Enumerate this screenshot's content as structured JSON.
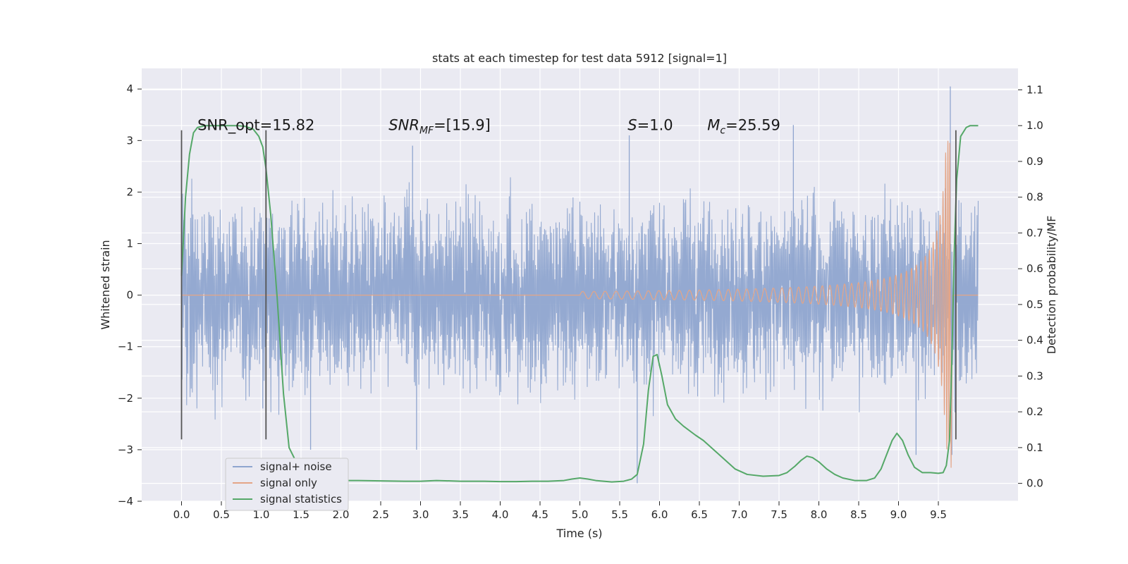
{
  "chart_data": {
    "type": "line",
    "title": "stats at each timestep for test data 5912 [signal=1]",
    "xlabel": "Time (s)",
    "ylabel": "Whitened strain",
    "y2label": "Detection probability/MF",
    "xlim": [
      -0.5,
      10.5
    ],
    "ylim": [
      -4.0,
      4.4
    ],
    "y2lim": [
      -0.05,
      1.16
    ],
    "x_ticks": [
      "0.0",
      "0.5",
      "1.0",
      "1.5",
      "2.0",
      "2.5",
      "3.0",
      "3.5",
      "4.0",
      "4.5",
      "5.0",
      "5.5",
      "6.0",
      "6.5",
      "7.0",
      "7.5",
      "8.0",
      "8.5",
      "9.0",
      "9.5"
    ],
    "y_ticks": [
      "4",
      "3",
      "2",
      "1",
      "0",
      "−1",
      "−2",
      "−3",
      "−4"
    ],
    "y2_ticks": [
      "1.1",
      "1.0",
      "0.9",
      "0.8",
      "0.7",
      "0.6",
      "0.5",
      "0.4",
      "0.3",
      "0.2",
      "0.1",
      "0.0"
    ],
    "grid": true,
    "legend_position": "lower-left",
    "annotations": [
      {
        "text": "SNR_opt=15.82",
        "x": 0.2,
        "y": 3.2
      },
      {
        "main": "SNR",
        "sub": "MF",
        "rest": "=[15.9]",
        "x": 2.6,
        "y": 3.2
      },
      {
        "main": "S",
        "sub": "",
        "rest": "=1.0",
        "x": 5.6,
        "y": 3.2
      },
      {
        "main": "M",
        "sub": "c",
        "rest": "=25.59",
        "x": 6.6,
        "y": 3.2
      }
    ],
    "vlines": [
      {
        "x": 0.0,
        "ymin": -2.8,
        "ymax": 3.2
      },
      {
        "x": 1.06,
        "ymin": -2.8,
        "ymax": 3.2
      },
      {
        "x": 9.72,
        "ymin": -2.8,
        "ymax": 3.2
      }
    ],
    "series": [
      {
        "name": "signal+ noise",
        "axis": "left",
        "color": "#8fa5cf",
        "description": "noisy whitened strain, roughly within ±1.5 with spikes to about ±3.5",
        "t_range": [
          0.0,
          10.0
        ],
        "envelope": [
          1.5,
          -1.5
        ],
        "peaks": [
          {
            "x": 1.02,
            "y": -2.2
          },
          {
            "x": 1.62,
            "y": -3.0
          },
          {
            "x": 2.9,
            "y": 2.9
          },
          {
            "x": 2.95,
            "y": -3.0
          },
          {
            "x": 5.72,
            "y": -3.65
          },
          {
            "x": 5.62,
            "y": 3.1
          },
          {
            "x": 7.68,
            "y": 3.3
          },
          {
            "x": 9.22,
            "y": -3.1
          },
          {
            "x": 9.65,
            "y": 4.05
          },
          {
            "x": 9.67,
            "y": -3.1
          }
        ]
      },
      {
        "name": "signal only",
        "axis": "left",
        "color": "#e4a587",
        "description": "chirp growing from zero near 5.0 s to a peak near 9.65 s",
        "chirp_start": 5.0,
        "chirp_peak": 9.65,
        "chirp_peak_amp": 3.0,
        "chirp_min": -3.35
      },
      {
        "name": "signal statistics",
        "axis": "right",
        "color": "#55a868",
        "x": [
          0.0,
          0.05,
          0.1,
          0.15,
          0.2,
          0.3,
          0.5,
          0.7,
          0.8,
          0.9,
          0.97,
          1.02,
          1.06,
          1.12,
          1.2,
          1.28,
          1.35,
          1.45,
          1.55,
          1.65,
          1.75,
          1.9,
          2.0,
          2.2,
          2.5,
          2.8,
          3.0,
          3.2,
          3.5,
          3.8,
          4.0,
          4.2,
          4.4,
          4.6,
          4.8,
          4.9,
          5.0,
          5.1,
          5.2,
          5.4,
          5.55,
          5.65,
          5.72,
          5.8,
          5.86,
          5.92,
          5.97,
          6.03,
          6.1,
          6.2,
          6.3,
          6.45,
          6.55,
          6.65,
          6.8,
          6.95,
          7.1,
          7.3,
          7.5,
          7.6,
          7.7,
          7.78,
          7.85,
          7.92,
          8.0,
          8.1,
          8.2,
          8.3,
          8.45,
          8.6,
          8.7,
          8.78,
          8.85,
          8.92,
          8.98,
          9.05,
          9.12,
          9.2,
          9.3,
          9.4,
          9.5,
          9.56,
          9.6,
          9.64,
          9.67,
          9.7,
          9.73,
          9.78,
          9.85,
          9.9,
          10.0
        ],
        "y": [
          0.58,
          0.8,
          0.92,
          0.98,
          0.995,
          1.0,
          1.0,
          1.0,
          0.998,
          0.99,
          0.97,
          0.94,
          0.88,
          0.75,
          0.52,
          0.25,
          0.1,
          0.055,
          0.04,
          0.027,
          0.018,
          0.01,
          0.008,
          0.008,
          0.007,
          0.006,
          0.006,
          0.008,
          0.006,
          0.006,
          0.005,
          0.005,
          0.006,
          0.006,
          0.008,
          0.012,
          0.015,
          0.012,
          0.008,
          0.004,
          0.006,
          0.012,
          0.025,
          0.11,
          0.26,
          0.355,
          0.36,
          0.3,
          0.22,
          0.18,
          0.16,
          0.135,
          0.12,
          0.1,
          0.07,
          0.04,
          0.025,
          0.02,
          0.022,
          0.03,
          0.048,
          0.065,
          0.076,
          0.072,
          0.06,
          0.04,
          0.025,
          0.015,
          0.008,
          0.008,
          0.015,
          0.04,
          0.08,
          0.12,
          0.14,
          0.12,
          0.08,
          0.045,
          0.03,
          0.03,
          0.028,
          0.03,
          0.05,
          0.12,
          0.35,
          0.65,
          0.85,
          0.97,
          0.995,
          1.0,
          1.0
        ]
      }
    ]
  }
}
